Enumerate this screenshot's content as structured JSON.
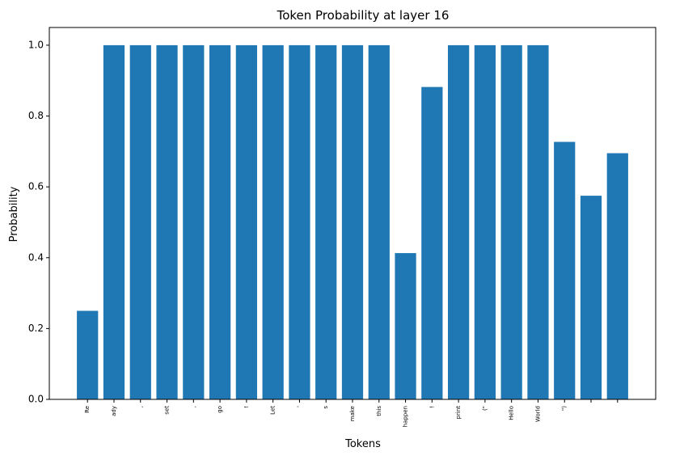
{
  "chart_data": {
    "type": "bar",
    "title": "Token Probability at layer 16",
    "xlabel": "Tokens",
    "ylabel": "Probability",
    "ylim": [
      0,
      1.05
    ],
    "yticks": [
      "0.0",
      "0.2",
      "0.4",
      "0.6",
      "0.8",
      "1.0"
    ],
    "grid": false,
    "bar_color": "#1f77b4",
    "categories": [
      "Re",
      "ady",
      ",",
      "set",
      ",",
      "go",
      "!",
      "Let",
      "'",
      "s",
      "make",
      "this",
      "happen",
      "!",
      "print",
      "(\"",
      "Hello",
      "World",
      "\")",
      "",
      ""
    ],
    "values": [
      0.25,
      1.0,
      1.0,
      1.0,
      1.0,
      1.0,
      1.0,
      1.0,
      1.0,
      1.0,
      1.0,
      1.0,
      0.413,
      0.882,
      1.0,
      1.0,
      1.0,
      1.0,
      0.727,
      0.575,
      0.695
    ]
  }
}
